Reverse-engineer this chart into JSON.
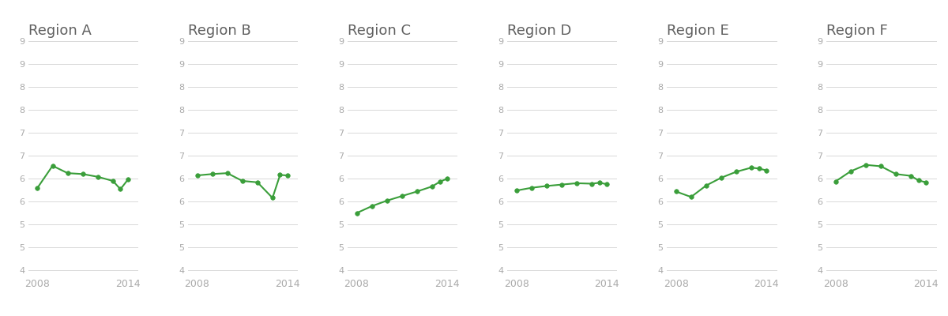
{
  "regions": [
    "Region A",
    "Region B",
    "Region C",
    "Region D",
    "Region E",
    "Region F"
  ],
  "series": {
    "Region A": [
      6.3,
      6.78,
      6.62,
      6.6,
      6.54,
      6.45,
      6.27,
      6.48
    ],
    "Region B": [
      6.57,
      6.6,
      6.62,
      6.45,
      6.42,
      6.08,
      6.58,
      6.57
    ],
    "Region C": [
      5.75,
      5.9,
      6.02,
      6.12,
      6.22,
      6.33,
      6.43,
      6.5
    ],
    "Region D": [
      6.24,
      6.3,
      6.34,
      6.37,
      6.4,
      6.39,
      6.41,
      6.38
    ],
    "Region E": [
      6.22,
      6.1,
      6.35,
      6.52,
      6.65,
      6.74,
      6.72,
      6.68
    ],
    "Region F": [
      6.44,
      6.66,
      6.8,
      6.77,
      6.6,
      6.56,
      6.46,
      6.42
    ]
  },
  "x_vals": [
    2008,
    2009,
    2010,
    2011,
    2012,
    2013,
    2013.5,
    2014
  ],
  "line_color": "#3a9e3a",
  "bg_color": "#ffffff",
  "grid_color": "#d8d8d8",
  "title_color": "#606060",
  "tick_color": "#aaaaaa",
  "ylim": [
    4.4,
    7.0
  ],
  "ytick_positions": [
    4.5,
    5.0,
    5.5,
    6.0,
    6.5,
    7.0,
    7.5,
    8.0,
    8.5,
    9.0,
    9.5
  ],
  "xlim": [
    2007.4,
    2014.7
  ],
  "title_fontsize": 13,
  "tick_fontsize": 9,
  "n_gridlines": 11
}
